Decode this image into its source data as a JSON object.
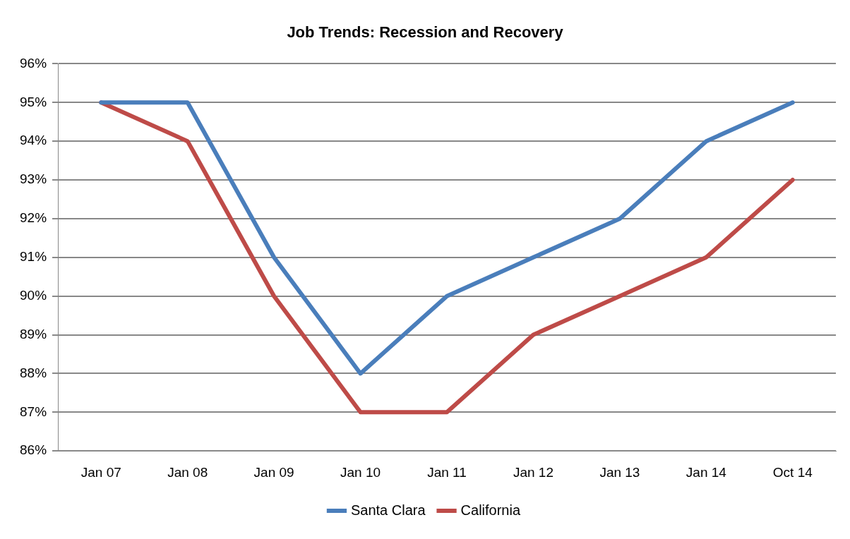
{
  "chart_data": {
    "type": "line",
    "title": "Job Trends: Recession and Recovery",
    "categories": [
      "Jan 07",
      "Jan 08",
      "Jan 09",
      "Jan 10",
      "Jan 11",
      "Jan 12",
      "Jan 13",
      "Jan 14",
      "Oct 14"
    ],
    "series": [
      {
        "name": "Santa Clara",
        "color": "#4a7ebb",
        "values": [
          95,
          95,
          91,
          88,
          90,
          91,
          92,
          94,
          95
        ]
      },
      {
        "name": "California",
        "color": "#be4b48",
        "values": [
          95,
          94,
          90,
          87,
          87,
          89,
          90,
          91,
          93
        ]
      }
    ],
    "ylim": [
      86,
      96
    ],
    "yticks": [
      {
        "value": 86,
        "label": "86%"
      },
      {
        "value": 87,
        "label": "87%"
      },
      {
        "value": 88,
        "label": "88%"
      },
      {
        "value": 89,
        "label": "89%"
      },
      {
        "value": 90,
        "label": "90%"
      },
      {
        "value": 91,
        "label": "91%"
      },
      {
        "value": 92,
        "label": "92%"
      },
      {
        "value": 93,
        "label": "93%"
      },
      {
        "value": 94,
        "label": "94%"
      },
      {
        "value": 95,
        "label": "95%"
      },
      {
        "value": 96,
        "label": "96%"
      }
    ],
    "grid": "y",
    "legend": "bottom",
    "marker": "none",
    "line_style": "solid"
  }
}
